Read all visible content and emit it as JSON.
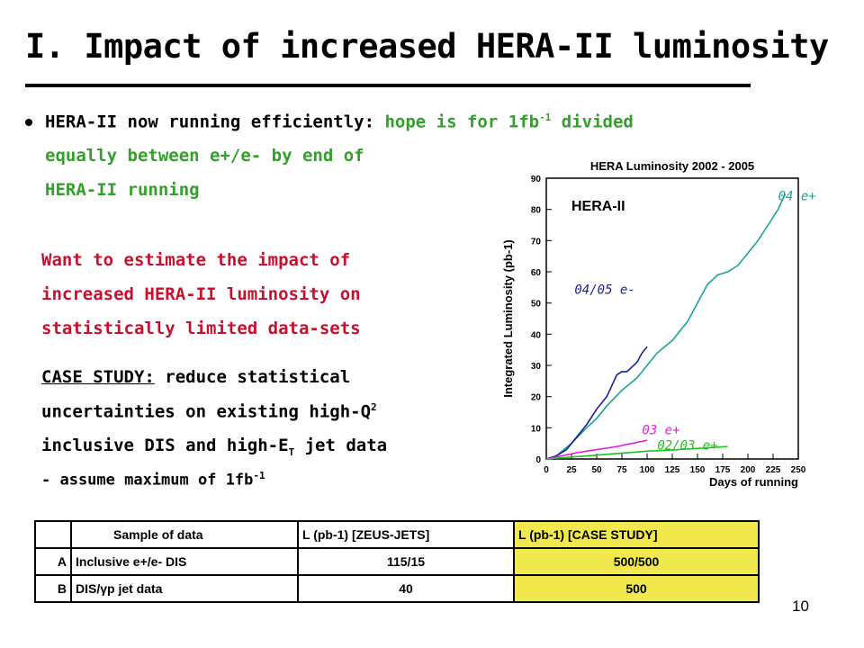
{
  "title": "I. Impact of increased HERA-II luminosity",
  "bullet": {
    "black": "HERA-II now running efficiently:",
    "green_part": " hope is for 1fb",
    "sup": "-1",
    "green_tail": " divided",
    "line2": "equally between e+/e- by end of",
    "line3": "HERA-II running"
  },
  "red_text": [
    "Want to estimate the impact of",
    "increased HERA-II luminosity on",
    "statistically limited data-sets"
  ],
  "case_study": {
    "label": "CASE STUDY:",
    "line1_tail": " reduce statistical",
    "line2_pre": "uncertainties on existing high-Q",
    "line2_sup": "2",
    "line3_pre": "inclusive DIS and high-E",
    "line3_sub": "T",
    "line3_post": " jet data",
    "line4_pre": "- assume maximum of 1fb",
    "line4_sup": "-1"
  },
  "page_number": "10",
  "table": {
    "headers": [
      "",
      "Sample of data",
      "L (pb-1) [ZEUS-JETS]",
      "L (pb-1) [CASE STUDY]"
    ],
    "rows": [
      [
        "A",
        "Inclusive e+/e- DIS",
        "115/15",
        "500/500"
      ],
      [
        "B",
        "DIS/γp jet data",
        "40",
        "500"
      ]
    ]
  },
  "chart_data": {
    "type": "line",
    "title": "HERA Luminosity 2002 - 2005",
    "xlabel": "Days of running",
    "ylabel": "Integrated Luminosity (pb-1)",
    "xlim": [
      0,
      250
    ],
    "ylim": [
      0,
      90
    ],
    "x_ticks": [
      0,
      25,
      50,
      75,
      100,
      125,
      150,
      175,
      200,
      225,
      250
    ],
    "y_ticks": [
      0,
      10,
      20,
      30,
      40,
      50,
      60,
      70,
      80,
      90
    ],
    "annotation": "HERA-II",
    "series": [
      {
        "name": "04 e+",
        "color": "#1aa39a",
        "x": [
          0,
          10,
          25,
          40,
          50,
          60,
          75,
          90,
          100,
          110,
          125,
          140,
          150,
          160,
          170,
          180,
          190,
          200,
          210,
          220,
          230,
          237
        ],
        "y": [
          0,
          1,
          5,
          10,
          13,
          17,
          22,
          26,
          30,
          34,
          38,
          44,
          50,
          56,
          59,
          60,
          62,
          66,
          70,
          75,
          80,
          85
        ]
      },
      {
        "name": "04/05 e-",
        "color": "#1c1c9c",
        "x": [
          0,
          10,
          20,
          30,
          40,
          50,
          60,
          70,
          75,
          80,
          90,
          95,
          100
        ],
        "y": [
          0,
          1,
          3,
          7,
          11,
          16,
          20,
          27,
          28,
          28,
          31,
          34,
          36
        ]
      },
      {
        "name": "03 e+",
        "color": "#e020e0",
        "x": [
          0,
          15,
          30,
          50,
          70,
          85,
          100
        ],
        "y": [
          0,
          1,
          2,
          3,
          4,
          5,
          6
        ]
      },
      {
        "name": "02/03 e+",
        "color": "#20c020",
        "x": [
          0,
          20,
          40,
          60,
          80,
          100,
          120,
          140,
          160,
          180
        ],
        "y": [
          0,
          0.5,
          1,
          1.5,
          2,
          2.5,
          2.8,
          3.2,
          3.6,
          4
        ]
      }
    ]
  }
}
